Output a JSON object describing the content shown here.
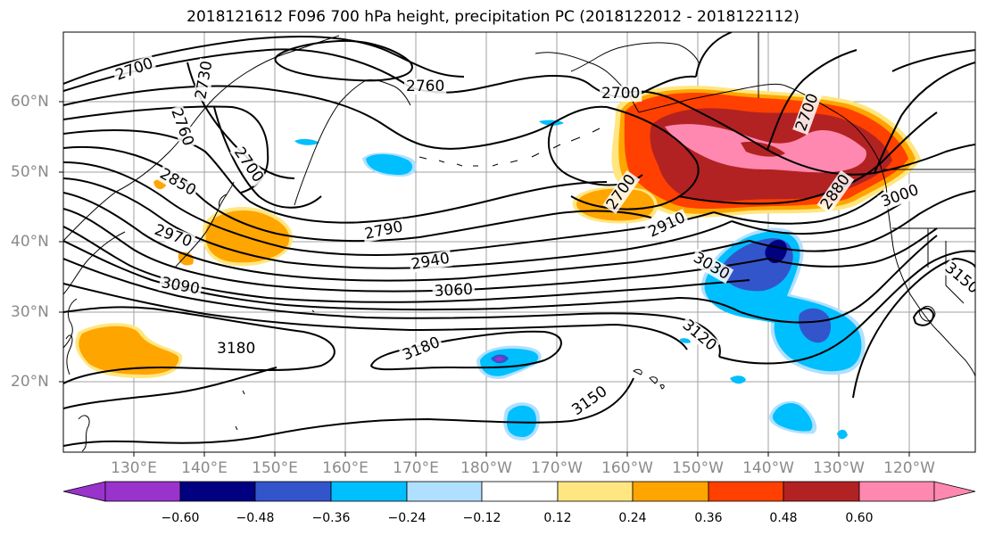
{
  "title": "2018121612 F096 700 hPa height, precipitation PC (2018122012 - 2018122112)",
  "latitude_labels": [
    "60°N",
    "50°N",
    "40°N",
    "30°N",
    "20°N"
  ],
  "longitude_labels": [
    "130°E",
    "140°E",
    "150°E",
    "160°E",
    "170°E",
    "180°W",
    "170°W",
    "160°W",
    "150°W",
    "140°W",
    "130°W",
    "120°W"
  ],
  "contour_labels": [
    "2700",
    "2730",
    "2760",
    "2760",
    "2700",
    "2700",
    "2850",
    "2790",
    "2940",
    "2970",
    "3090",
    "3060",
    "3030",
    "2700",
    "2910",
    "2880",
    "3000",
    "3150",
    "3120",
    "3180",
    "3180",
    "3150",
    "2700"
  ],
  "colorbar": {
    "tick_labels": [
      "−0.60",
      "−0.48",
      "−0.36",
      "−0.24",
      "−0.12",
      "0.12",
      "0.24",
      "0.36",
      "0.48",
      "0.60"
    ],
    "colors": [
      "#9933cc",
      "#000080",
      "#3355cc",
      "#00bfff",
      "#b0e0ff",
      "#ffffff",
      "#ffe680",
      "#ffa500",
      "#ff4000",
      "#b22222",
      "#ff88b0"
    ]
  },
  "shading_colors": {
    "neg_strong": "#3355cc",
    "neg_mid": "#00bfff",
    "neg_weak": "#b0e0ff",
    "neg_purple": "#9933cc",
    "pos_weak": "#ffe680",
    "pos_mid": "#ffa500",
    "pos_strong": "#ff4000",
    "pos_stronger": "#b22222",
    "pos_max": "#ff88b0"
  }
}
